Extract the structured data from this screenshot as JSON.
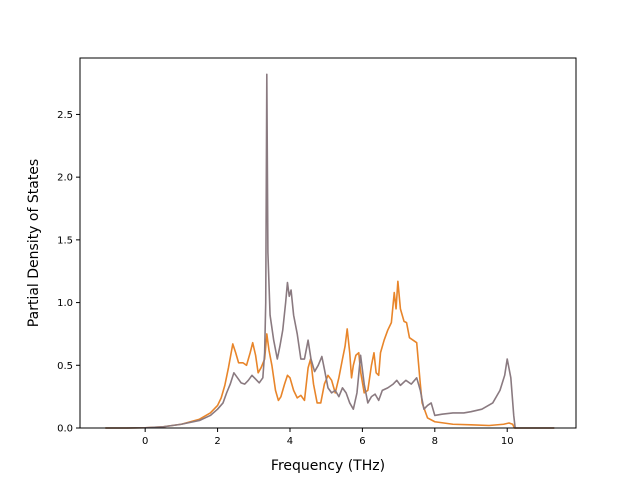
{
  "chart_data": {
    "type": "line",
    "title": "",
    "xlabel": "Frequency (THz)",
    "ylabel": "Partial Density of States",
    "xlim": [
      -1.8,
      11.9
    ],
    "ylim": [
      0,
      2.95
    ],
    "xticks": [
      0,
      2,
      4,
      6,
      8,
      10
    ],
    "xtick_labels": [
      "0",
      "2",
      "4",
      "6",
      "8",
      "10"
    ],
    "yticks": [
      0,
      0.5,
      1.0,
      1.5,
      2.0,
      2.5
    ],
    "ytick_labels": [
      "0.0",
      "0.5",
      "1.0",
      "1.5",
      "2.0",
      "2.5"
    ],
    "grid": false,
    "legend": "none",
    "series": [
      {
        "color": "#e8852a",
        "points": [
          [
            -1.1,
            0
          ],
          [
            -0.5,
            0
          ],
          [
            0,
            0.002
          ],
          [
            0.5,
            0.01
          ],
          [
            1.0,
            0.03
          ],
          [
            1.5,
            0.07
          ],
          [
            1.8,
            0.12
          ],
          [
            2.0,
            0.18
          ],
          [
            2.1,
            0.24
          ],
          [
            2.2,
            0.34
          ],
          [
            2.3,
            0.48
          ],
          [
            2.42,
            0.67
          ],
          [
            2.5,
            0.6
          ],
          [
            2.58,
            0.52
          ],
          [
            2.7,
            0.52
          ],
          [
            2.8,
            0.5
          ],
          [
            2.9,
            0.6
          ],
          [
            2.97,
            0.68
          ],
          [
            3.05,
            0.58
          ],
          [
            3.12,
            0.44
          ],
          [
            3.2,
            0.48
          ],
          [
            3.3,
            0.55
          ],
          [
            3.36,
            0.75
          ],
          [
            3.42,
            0.62
          ],
          [
            3.5,
            0.5
          ],
          [
            3.6,
            0.3
          ],
          [
            3.68,
            0.22
          ],
          [
            3.75,
            0.25
          ],
          [
            3.85,
            0.35
          ],
          [
            3.93,
            0.42
          ],
          [
            4.0,
            0.4
          ],
          [
            4.1,
            0.3
          ],
          [
            4.2,
            0.24
          ],
          [
            4.3,
            0.26
          ],
          [
            4.4,
            0.22
          ],
          [
            4.5,
            0.48
          ],
          [
            4.57,
            0.55
          ],
          [
            4.65,
            0.35
          ],
          [
            4.75,
            0.2
          ],
          [
            4.85,
            0.2
          ],
          [
            4.95,
            0.35
          ],
          [
            5.05,
            0.42
          ],
          [
            5.15,
            0.38
          ],
          [
            5.25,
            0.28
          ],
          [
            5.35,
            0.4
          ],
          [
            5.45,
            0.55
          ],
          [
            5.52,
            0.65
          ],
          [
            5.58,
            0.79
          ],
          [
            5.65,
            0.6
          ],
          [
            5.7,
            0.4
          ],
          [
            5.75,
            0.5
          ],
          [
            5.82,
            0.58
          ],
          [
            5.9,
            0.6
          ],
          [
            5.95,
            0.45
          ],
          [
            6.05,
            0.28
          ],
          [
            6.15,
            0.3
          ],
          [
            6.25,
            0.5
          ],
          [
            6.32,
            0.6
          ],
          [
            6.38,
            0.44
          ],
          [
            6.45,
            0.42
          ],
          [
            6.5,
            0.6
          ],
          [
            6.6,
            0.7
          ],
          [
            6.7,
            0.78
          ],
          [
            6.8,
            0.84
          ],
          [
            6.88,
            1.08
          ],
          [
            6.93,
            0.95
          ],
          [
            6.98,
            1.17
          ],
          [
            7.05,
            0.95
          ],
          [
            7.15,
            0.85
          ],
          [
            7.22,
            0.84
          ],
          [
            7.3,
            0.72
          ],
          [
            7.4,
            0.7
          ],
          [
            7.5,
            0.68
          ],
          [
            7.6,
            0.35
          ],
          [
            7.65,
            0.2
          ],
          [
            7.8,
            0.08
          ],
          [
            8.0,
            0.05
          ],
          [
            8.5,
            0.03
          ],
          [
            9.0,
            0.025
          ],
          [
            9.5,
            0.02
          ],
          [
            9.9,
            0.03
          ],
          [
            10.05,
            0.04
          ],
          [
            10.15,
            0.03
          ],
          [
            10.2,
            0.0
          ],
          [
            11.3,
            0.0
          ]
        ]
      },
      {
        "color": "#8a7a80",
        "points": [
          [
            -1.1,
            0
          ],
          [
            -0.5,
            0
          ],
          [
            0,
            0.002
          ],
          [
            0.5,
            0.01
          ],
          [
            1.0,
            0.03
          ],
          [
            1.5,
            0.06
          ],
          [
            1.8,
            0.1
          ],
          [
            2.0,
            0.15
          ],
          [
            2.15,
            0.2
          ],
          [
            2.25,
            0.28
          ],
          [
            2.35,
            0.35
          ],
          [
            2.45,
            0.44
          ],
          [
            2.55,
            0.4
          ],
          [
            2.65,
            0.36
          ],
          [
            2.75,
            0.35
          ],
          [
            2.85,
            0.38
          ],
          [
            2.95,
            0.42
          ],
          [
            3.05,
            0.39
          ],
          [
            3.15,
            0.36
          ],
          [
            3.25,
            0.4
          ],
          [
            3.3,
            0.6
          ],
          [
            3.33,
            1.0
          ],
          [
            3.36,
            2.82
          ],
          [
            3.39,
            1.4
          ],
          [
            3.45,
            0.9
          ],
          [
            3.55,
            0.7
          ],
          [
            3.65,
            0.55
          ],
          [
            3.72,
            0.65
          ],
          [
            3.8,
            0.78
          ],
          [
            3.88,
            1.0
          ],
          [
            3.93,
            1.16
          ],
          [
            3.98,
            1.05
          ],
          [
            4.03,
            1.1
          ],
          [
            4.1,
            0.9
          ],
          [
            4.2,
            0.75
          ],
          [
            4.3,
            0.55
          ],
          [
            4.4,
            0.55
          ],
          [
            4.5,
            0.7
          ],
          [
            4.58,
            0.55
          ],
          [
            4.68,
            0.45
          ],
          [
            4.78,
            0.5
          ],
          [
            4.88,
            0.57
          ],
          [
            4.95,
            0.47
          ],
          [
            5.05,
            0.32
          ],
          [
            5.15,
            0.28
          ],
          [
            5.25,
            0.3
          ],
          [
            5.35,
            0.25
          ],
          [
            5.45,
            0.32
          ],
          [
            5.55,
            0.28
          ],
          [
            5.65,
            0.2
          ],
          [
            5.75,
            0.15
          ],
          [
            5.85,
            0.28
          ],
          [
            5.95,
            0.58
          ],
          [
            6.05,
            0.35
          ],
          [
            6.15,
            0.2
          ],
          [
            6.25,
            0.25
          ],
          [
            6.35,
            0.27
          ],
          [
            6.45,
            0.22
          ],
          [
            6.55,
            0.3
          ],
          [
            6.7,
            0.32
          ],
          [
            6.85,
            0.35
          ],
          [
            6.95,
            0.38
          ],
          [
            7.05,
            0.34
          ],
          [
            7.2,
            0.38
          ],
          [
            7.35,
            0.35
          ],
          [
            7.5,
            0.4
          ],
          [
            7.6,
            0.3
          ],
          [
            7.7,
            0.15
          ],
          [
            7.8,
            0.18
          ],
          [
            7.9,
            0.2
          ],
          [
            8.0,
            0.1
          ],
          [
            8.2,
            0.11
          ],
          [
            8.5,
            0.12
          ],
          [
            8.8,
            0.12
          ],
          [
            9.0,
            0.13
          ],
          [
            9.3,
            0.15
          ],
          [
            9.6,
            0.2
          ],
          [
            9.8,
            0.3
          ],
          [
            9.93,
            0.42
          ],
          [
            10.0,
            0.55
          ],
          [
            10.1,
            0.4
          ],
          [
            10.18,
            0.1
          ],
          [
            10.22,
            0.0
          ],
          [
            11.3,
            0.0
          ]
        ]
      }
    ]
  }
}
